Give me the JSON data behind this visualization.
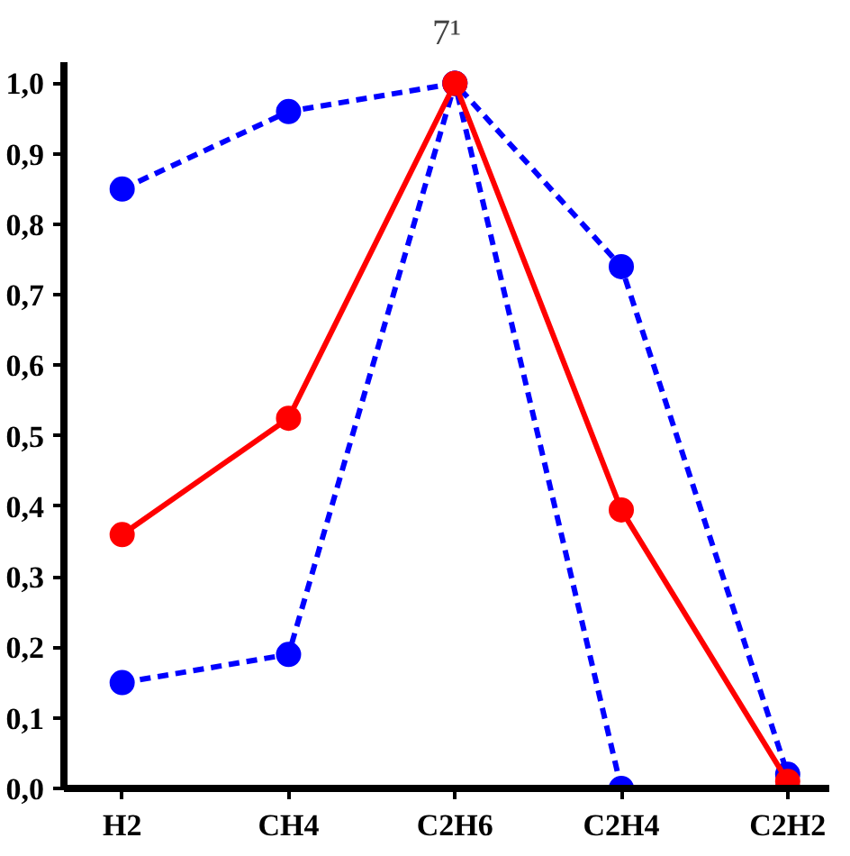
{
  "chart_data": {
    "type": "line",
    "title": "7¹",
    "categories": [
      "H2",
      "CH4",
      "C2H6",
      "C2H4",
      "C2H2"
    ],
    "series": [
      {
        "color": "#0000ff",
        "values": [
          0.85,
          0.96,
          1.0,
          0.74,
          0.02
        ],
        "line_style": "dashed"
      },
      {
        "color": "#0000ff",
        "values": [
          0.15,
          0.19,
          1.0,
          0.0,
          0.0
        ],
        "line_style": "dashed"
      },
      {
        "color": "#ff0000",
        "values": [
          0.36,
          0.525,
          1.0,
          0.395,
          0.01
        ],
        "line_style": "solid"
      }
    ],
    "ylim": [
      0,
      1.03
    ],
    "yticks": [
      {
        "value": 0,
        "label": "0,0"
      },
      {
        "value": 0.1,
        "label": "0,1"
      },
      {
        "value": 0.2,
        "label": "0,2"
      },
      {
        "value": 0.3,
        "label": "0,3"
      },
      {
        "value": 0.4,
        "label": "0,4"
      },
      {
        "value": 0.5,
        "label": "0,5"
      },
      {
        "value": 0.6,
        "label": "0,6"
      },
      {
        "value": 0.7,
        "label": "0,7"
      },
      {
        "value": 0.8,
        "label": "0,8"
      },
      {
        "value": 0.9,
        "label": "0,9"
      },
      {
        "value": 1.0,
        "label": "1,0"
      }
    ],
    "marker": "circle",
    "grid": false
  }
}
